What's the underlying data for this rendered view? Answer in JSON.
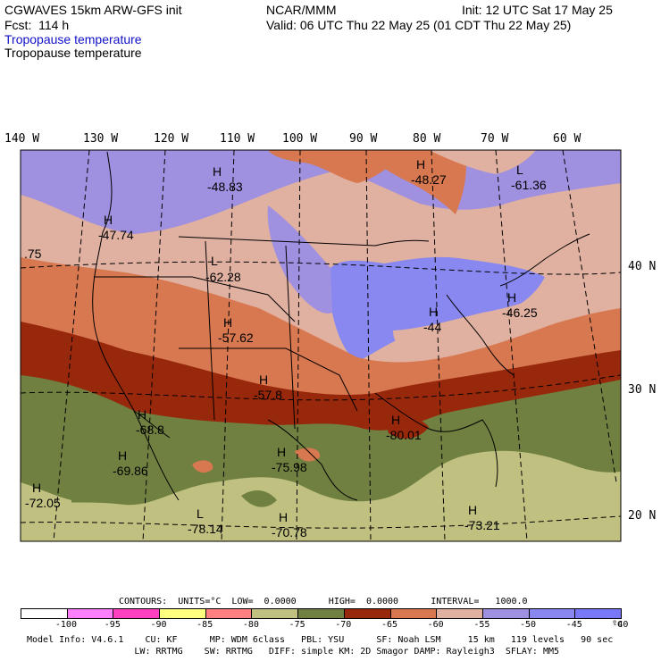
{
  "header": {
    "model": "CGWAVES 15km ARW-GFS init",
    "org": "NCAR/MMM",
    "init": "Init: 12 UTC Sat 17 May 25",
    "fcst": "Fcst:  114 h",
    "valid": "Valid: 06 UTC Thu 22 May 25 (01 CDT Thu 22 May 25)",
    "field_color": "Tropopause temperature",
    "field_black": "Tropopause temperature"
  },
  "longitude_labels": [
    "140 W",
    "130 W",
    "120 W",
    "110 W",
    "100 W",
    "90 W",
    "80 W",
    "70 W",
    "60 W"
  ],
  "latitude_labels": [
    "40 N",
    "30 N",
    "20 N"
  ],
  "map_labels": [
    {
      "letter": "H",
      "value": "-48.83"
    },
    {
      "letter": "H",
      "value": "-48.27"
    },
    {
      "letter": "L",
      "value": "-61.36"
    },
    {
      "letter": "H",
      "value": "-47.74"
    },
    {
      "letter": "",
      "value": ".75"
    },
    {
      "letter": "L",
      "value": "-62.28"
    },
    {
      "letter": "H",
      "value": "-57.62"
    },
    {
      "letter": "H",
      "value": "-46.25"
    },
    {
      "letter": "H",
      "value": "-44"
    },
    {
      "letter": "H",
      "value": "-57.8"
    },
    {
      "letter": "H",
      "value": "-68.8"
    },
    {
      "letter": "H",
      "value": "-69.86"
    },
    {
      "letter": "H",
      "value": "-72.05"
    },
    {
      "letter": "H",
      "value": "-75.98"
    },
    {
      "letter": "H",
      "value": "-80.01"
    },
    {
      "letter": "L",
      "value": "-78.14"
    },
    {
      "letter": "H",
      "value": "-70.78"
    },
    {
      "letter": "H",
      "value": "-73.21"
    }
  ],
  "contours_line": "CONTOURS:  UNITS=°C  LOW=  0.0000      HIGH=  0.0000      INTERVAL=   1000.0",
  "colorbar": {
    "colors": [
      "#ffffff",
      "#ff80ff",
      "#ff40c0",
      "#ffff80",
      "#ff8080",
      "#c0c080",
      "#708040",
      "#98280c",
      "#d87850",
      "#e0b0a0",
      "#a090e0",
      "#8888f0",
      "#7878f8"
    ],
    "ticks": [
      "-100",
      "-95",
      "-90",
      "-85",
      "-80",
      "-75",
      "-70",
      "-65",
      "-60",
      "-55",
      "-50",
      "-45",
      "-40",
      "°C"
    ]
  },
  "footer": {
    "line1": "Model Info: V4.6.1    CU: KF      MP: WDM 6class   PBL: YSU      SF: Noah LSM     15 km   119 levels   90 sec",
    "line2": "                    LW: RRTMG    SW: RRTMG   DIFF: simple KM: 2D Smagor DAMP: Rayleigh3  SFLAY: MM5"
  }
}
